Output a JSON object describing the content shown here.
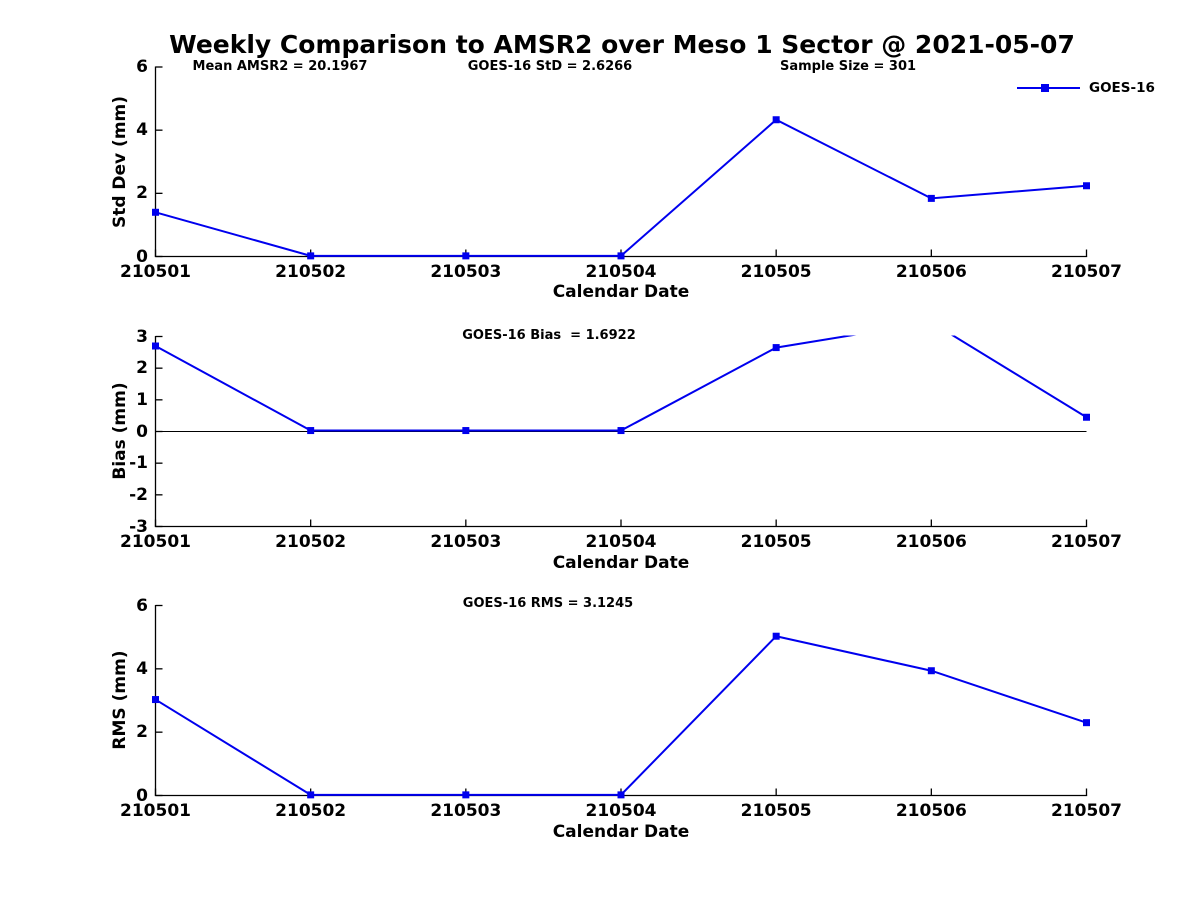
{
  "title": "Weekly Comparison to AMSR2 over Meso 1 Sector @ 2021-05-07",
  "legend": {
    "label": "GOES-16"
  },
  "colors": {
    "line": "#0000EE",
    "axis": "#000000",
    "text": "#000000"
  },
  "chart_data": [
    {
      "type": "line",
      "ylabel": "Std Dev (mm)",
      "xlabel": "Calendar Date",
      "ylim": [
        0,
        6
      ],
      "yticks": [
        0,
        2,
        4,
        6
      ],
      "categories": [
        "210501",
        "210502",
        "210503",
        "210504",
        "210505",
        "210506",
        "210507"
      ],
      "series": [
        {
          "name": "GOES-16",
          "values": [
            1.4,
            0.02,
            0.02,
            0.02,
            4.33,
            1.84,
            2.24
          ]
        }
      ],
      "annotations": [
        "Mean AMSR2 = 20.1967",
        "GOES-16 StD = 2.6266",
        "Sample Size = 301"
      ],
      "legend_position": "top-right",
      "grid": false
    },
    {
      "type": "line",
      "ylabel": "Bias (mm)",
      "xlabel": "Calendar Date",
      "ylim": [
        -3,
        3
      ],
      "yticks": [
        3,
        2,
        1,
        0,
        -1,
        -2,
        -3
      ],
      "zero_line": true,
      "categories": [
        "210501",
        "210502",
        "210503",
        "210504",
        "210505",
        "210506",
        "210507"
      ],
      "series": [
        {
          "name": "GOES-16",
          "values": [
            2.7,
            0.03,
            0.03,
            0.03,
            2.65,
            3.45,
            0.45
          ]
        }
      ],
      "annotations": [
        "GOES-16 Bias  = 1.6922"
      ],
      "grid": false
    },
    {
      "type": "line",
      "ylabel": "RMS (mm)",
      "xlabel": "Calendar Date",
      "ylim": [
        0,
        6
      ],
      "yticks": [
        0,
        2,
        4,
        6
      ],
      "categories": [
        "210501",
        "210502",
        "210503",
        "210504",
        "210505",
        "210506",
        "210507"
      ],
      "series": [
        {
          "name": "GOES-16",
          "values": [
            3.03,
            0.02,
            0.02,
            0.02,
            5.03,
            3.94,
            2.3
          ]
        }
      ],
      "annotations": [
        "GOES-16 RMS = 3.1245"
      ],
      "grid": false
    }
  ]
}
